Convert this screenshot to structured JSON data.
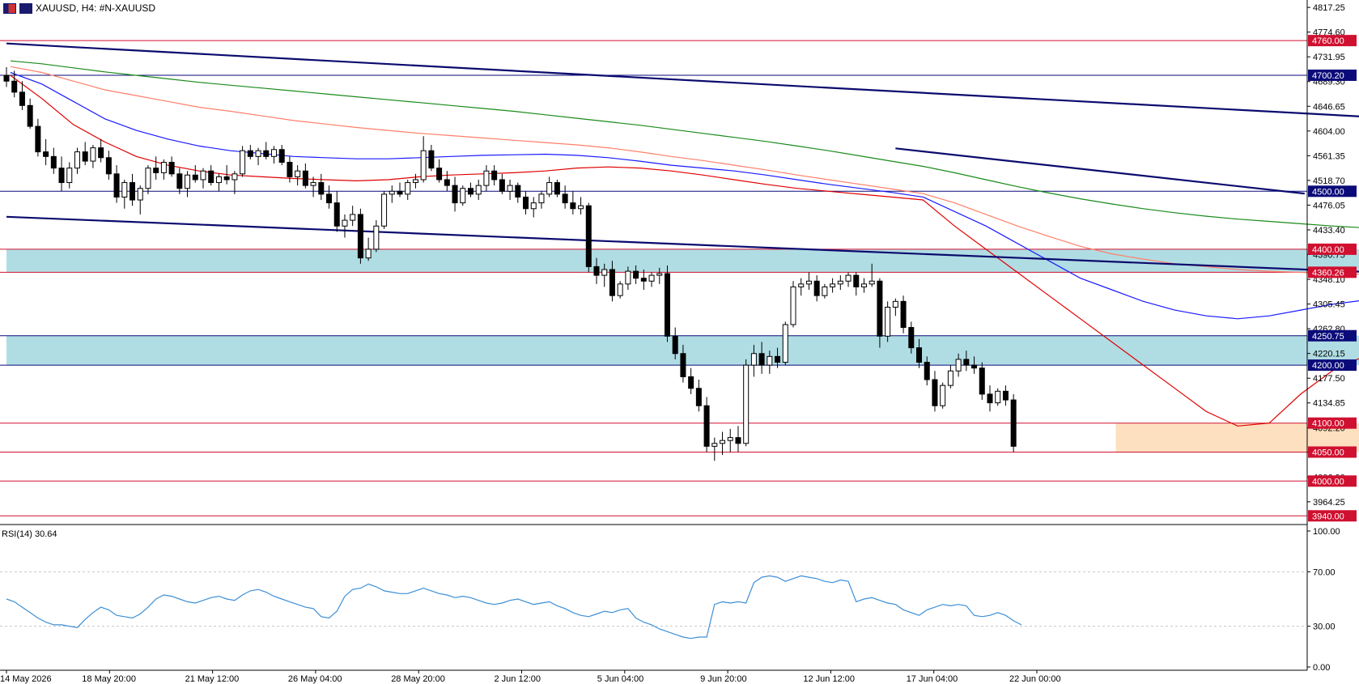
{
  "header": {
    "symbol": "XAUUSD",
    "timeframe": "H4:",
    "description": "#N-XAUUSD"
  },
  "indicator": {
    "label": "RSI(14) 30.64",
    "axis_ticks": [
      "100.00",
      "70.00",
      "30.00",
      "0.00"
    ]
  },
  "colors": {
    "background": "#ffffff",
    "bull_candle": "#ffffff",
    "bear_candle": "#000000",
    "ema_fast": "#e00000",
    "ema_mid": "#1a1aff",
    "ema_slow": "#ff7f6a",
    "ema_long": "#1a8a1a",
    "rsi": "#3d8fd6",
    "zone_cyan": "#b0dde3",
    "zone_orange": "#fde0c0",
    "trendline": "#0a0a6e",
    "red_level": "#d01030",
    "blue_level": "#0a0a7a"
  },
  "chart_data": {
    "type": "candlestick",
    "symbol": "XAUUSD",
    "timeframe": "H4",
    "ylim": [
      3925,
      4830
    ],
    "price_axis_ticks": [
      "4817.25",
      "4774.60",
      "4731.95",
      "4689.30",
      "4646.65",
      "4604.00",
      "4561.35",
      "4518.70",
      "4476.05",
      "4433.40",
      "4390.75",
      "4348.10",
      "4305.45",
      "4262.80",
      "4220.15",
      "4177.50",
      "4134.85",
      "4092.20",
      "4049.55",
      "4006.90",
      "3964.25"
    ],
    "time_axis_labels": [
      "14 May 2026",
      "18 May 20:00",
      "21 May 12:00",
      "26 May 04:00",
      "28 May 20:00",
      "2 Jun 12:00",
      "5 Jun 04:00",
      "9 Jun 20:00",
      "12 Jun 12:00",
      "17 Jun 04:00",
      "22 Jun 00:00"
    ],
    "horizontal_levels": [
      {
        "value": 4760.0,
        "label": "4760.00",
        "style": "red"
      },
      {
        "value": 4700.2,
        "label": "4700.20",
        "style": "blue"
      },
      {
        "value": 4500.0,
        "label": "4500.00",
        "style": "blue"
      },
      {
        "value": 4400.0,
        "label": "4400.00",
        "style": "red"
      },
      {
        "value": 4360.26,
        "label": "4360.26",
        "style": "red"
      },
      {
        "value": 4250.75,
        "label": "4250.75",
        "style": "blue"
      },
      {
        "value": 4200.0,
        "label": "4200.00",
        "style": "blue"
      },
      {
        "value": 4100.0,
        "label": "4100.00",
        "style": "red"
      },
      {
        "value": 4050.0,
        "label": "4050.00",
        "style": "red"
      },
      {
        "value": 4000.0,
        "label": "4000.00",
        "style": "red"
      },
      {
        "value": 3940.0,
        "label": "3940.00",
        "style": "red"
      }
    ],
    "zones": [
      {
        "from_bar": 0,
        "to_bar": 304,
        "low": 4360.26,
        "high": 4400.0,
        "color": "cyan"
      },
      {
        "from_bar": 0,
        "to_bar": 300,
        "low": 4200.0,
        "high": 4250.75,
        "color": "cyan"
      },
      {
        "from_bar": 141,
        "to_bar": 300,
        "low": 4050.0,
        "high": 4100.0,
        "color": "orange"
      }
    ],
    "trendlines": [
      {
        "x1": 0,
        "y1": 4755,
        "x2": 201,
        "y2": 4608
      },
      {
        "x1": 0,
        "y1": 4456,
        "x2": 254,
        "y2": 4316
      },
      {
        "x1": 113,
        "y1": 4574,
        "x2": 165,
        "y2": 4496
      }
    ],
    "ohlc": [
      [
        4700,
        4714,
        4680,
        4690
      ],
      [
        4690,
        4708,
        4662,
        4671
      ],
      [
        4671,
        4690,
        4640,
        4648
      ],
      [
        4648,
        4660,
        4608,
        4612
      ],
      [
        4612,
        4625,
        4560,
        4568
      ],
      [
        4568,
        4590,
        4545,
        4560
      ],
      [
        4560,
        4575,
        4530,
        4540
      ],
      [
        4540,
        4560,
        4500,
        4515
      ],
      [
        4515,
        4550,
        4505,
        4540
      ],
      [
        4540,
        4575,
        4530,
        4568
      ],
      [
        4568,
        4585,
        4545,
        4552
      ],
      [
        4552,
        4580,
        4540,
        4575
      ],
      [
        4575,
        4590,
        4550,
        4558
      ],
      [
        4558,
        4570,
        4520,
        4530
      ],
      [
        4530,
        4545,
        4480,
        4490
      ],
      [
        4490,
        4520,
        4470,
        4515
      ],
      [
        4515,
        4530,
        4475,
        4485
      ],
      [
        4485,
        4510,
        4460,
        4505
      ],
      [
        4505,
        4545,
        4495,
        4540
      ],
      [
        4540,
        4560,
        4520,
        4532
      ],
      [
        4532,
        4555,
        4520,
        4550
      ],
      [
        4550,
        4560,
        4525,
        4530
      ],
      [
        4530,
        4540,
        4495,
        4505
      ],
      [
        4505,
        4535,
        4490,
        4528
      ],
      [
        4528,
        4545,
        4515,
        4520
      ],
      [
        4520,
        4540,
        4505,
        4535
      ],
      [
        4535,
        4545,
        4510,
        4515
      ],
      [
        4515,
        4530,
        4500,
        4525
      ],
      [
        4525,
        4545,
        4512,
        4520
      ],
      [
        4520,
        4535,
        4495,
        4530
      ],
      [
        4530,
        4578,
        4525,
        4570
      ],
      [
        4570,
        4580,
        4555,
        4560
      ],
      [
        4560,
        4575,
        4545,
        4570
      ],
      [
        4570,
        4585,
        4555,
        4560
      ],
      [
        4560,
        4578,
        4548,
        4572
      ],
      [
        4572,
        4580,
        4545,
        4550
      ],
      [
        4550,
        4560,
        4515,
        4525
      ],
      [
        4525,
        4545,
        4510,
        4535
      ],
      [
        4535,
        4548,
        4505,
        4510
      ],
      [
        4510,
        4525,
        4490,
        4515
      ],
      [
        4515,
        4530,
        4485,
        4495
      ],
      [
        4495,
        4510,
        4470,
        4480
      ],
      [
        4480,
        4500,
        4430,
        4440
      ],
      [
        4440,
        4460,
        4420,
        4450
      ],
      [
        4450,
        4475,
        4440,
        4460
      ],
      [
        4460,
        4470,
        4375,
        4385
      ],
      [
        4385,
        4420,
        4380,
        4400
      ],
      [
        4400,
        4450,
        4395,
        4440
      ],
      [
        4440,
        4500,
        4435,
        4495
      ],
      [
        4495,
        4510,
        4480,
        4500
      ],
      [
        4500,
        4515,
        4490,
        4495
      ],
      [
        4495,
        4520,
        4485,
        4515
      ],
      [
        4515,
        4530,
        4505,
        4520
      ],
      [
        4520,
        4595,
        4515,
        4570
      ],
      [
        4570,
        4580,
        4535,
        4540
      ],
      [
        4540,
        4555,
        4515,
        4520
      ],
      [
        4520,
        4535,
        4500,
        4510
      ],
      [
        4510,
        4525,
        4465,
        4480
      ],
      [
        4480,
        4510,
        4475,
        4505
      ],
      [
        4505,
        4515,
        4490,
        4495
      ],
      [
        4495,
        4520,
        4485,
        4510
      ],
      [
        4510,
        4545,
        4500,
        4535
      ],
      [
        4535,
        4545,
        4510,
        4520
      ],
      [
        4520,
        4530,
        4495,
        4500
      ],
      [
        4500,
        4520,
        4485,
        4510
      ],
      [
        4510,
        4515,
        4480,
        4490
      ],
      [
        4490,
        4500,
        4460,
        4470
      ],
      [
        4470,
        4490,
        4455,
        4480
      ],
      [
        4480,
        4500,
        4470,
        4495
      ],
      [
        4495,
        4525,
        4490,
        4515
      ],
      [
        4515,
        4520,
        4490,
        4495
      ],
      [
        4495,
        4510,
        4470,
        4480
      ],
      [
        4480,
        4500,
        4460,
        4470
      ],
      [
        4470,
        4490,
        4460,
        4475
      ],
      [
        4475,
        4480,
        4360,
        4370
      ],
      [
        4370,
        4385,
        4340,
        4355
      ],
      [
        4355,
        4375,
        4335,
        4365
      ],
      [
        4365,
        4380,
        4310,
        4320
      ],
      [
        4320,
        4345,
        4315,
        4340
      ],
      [
        4340,
        4370,
        4330,
        4362
      ],
      [
        4362,
        4372,
        4340,
        4350
      ],
      [
        4350,
        4365,
        4330,
        4345
      ],
      [
        4345,
        4360,
        4335,
        4355
      ],
      [
        4355,
        4368,
        4340,
        4358
      ],
      [
        4358,
        4372,
        4240,
        4250
      ],
      [
        4250,
        4265,
        4210,
        4220
      ],
      [
        4220,
        4235,
        4170,
        4180
      ],
      [
        4180,
        4195,
        4150,
        4160
      ],
      [
        4160,
        4175,
        4120,
        4130
      ],
      [
        4130,
        4145,
        4050,
        4060
      ],
      [
        4060,
        4075,
        4035,
        4065
      ],
      [
        4065,
        4085,
        4045,
        4070
      ],
      [
        4070,
        4090,
        4050,
        4075
      ],
      [
        4075,
        4095,
        4050,
        4065
      ],
      [
        4065,
        4210,
        4060,
        4200
      ],
      [
        4200,
        4235,
        4180,
        4220
      ],
      [
        4220,
        4240,
        4185,
        4200
      ],
      [
        4200,
        4225,
        4185,
        4215
      ],
      [
        4215,
        4230,
        4195,
        4205
      ],
      [
        4205,
        4275,
        4200,
        4270
      ],
      [
        4270,
        4345,
        4265,
        4335
      ],
      [
        4335,
        4350,
        4320,
        4340
      ],
      [
        4340,
        4360,
        4330,
        4345
      ],
      [
        4345,
        4355,
        4310,
        4320
      ],
      [
        4320,
        4340,
        4315,
        4335
      ],
      [
        4335,
        4350,
        4325,
        4340
      ],
      [
        4340,
        4355,
        4330,
        4345
      ],
      [
        4345,
        4360,
        4335,
        4355
      ],
      [
        4355,
        4360,
        4320,
        4335
      ],
      [
        4335,
        4350,
        4325,
        4340
      ],
      [
        4340,
        4375,
        4335,
        4345
      ],
      [
        4345,
        4350,
        4230,
        4250
      ],
      [
        4250,
        4310,
        4240,
        4300
      ],
      [
        4300,
        4315,
        4285,
        4310
      ],
      [
        4310,
        4320,
        4255,
        4265
      ],
      [
        4265,
        4275,
        4220,
        4230
      ],
      [
        4230,
        4245,
        4195,
        4205
      ],
      [
        4205,
        4215,
        4165,
        4175
      ],
      [
        4175,
        4190,
        4120,
        4130
      ],
      [
        4130,
        4170,
        4125,
        4165
      ],
      [
        4165,
        4200,
        4160,
        4190
      ],
      [
        4190,
        4220,
        4180,
        4210
      ],
      [
        4210,
        4225,
        4190,
        4200
      ],
      [
        4200,
        4215,
        4185,
        4195
      ],
      [
        4195,
        4205,
        4140,
        4150
      ],
      [
        4150,
        4165,
        4120,
        4135
      ],
      [
        4135,
        4160,
        4130,
        4155
      ],
      [
        4155,
        4165,
        4130,
        4140
      ],
      [
        4140,
        4150,
        4050,
        4060
      ]
    ],
    "moving_averages": [
      {
        "name": "EMA fast",
        "color": "#e00000",
        "values": [
          4700,
          4660,
          4615,
          4585,
          4560,
          4545,
          4535,
          4528,
          4525,
          4522,
          4520,
          4518,
          4520,
          4525,
          4528,
          4530,
          4532,
          4535,
          4540,
          4542,
          4540,
          4535,
          4528,
          4520,
          4512,
          4505,
          4500,
          4495,
          4490,
          4485,
          4440,
          4400,
          4360,
          4320,
          4280,
          4240,
          4200,
          4160,
          4120,
          4095,
          4100,
          4150,
          4190,
          4215,
          4240,
          4265,
          4285,
          4300,
          4310,
          4315,
          4312,
          4300,
          4285,
          4262,
          4240,
          4220,
          4200,
          4185,
          4170,
          4150
        ]
      },
      {
        "name": "EMA mid",
        "color": "#1a1aff",
        "values": [
          4705,
          4685,
          4655,
          4625,
          4605,
          4590,
          4578,
          4570,
          4565,
          4560,
          4558,
          4556,
          4556,
          4558,
          4560,
          4562,
          4563,
          4564,
          4562,
          4558,
          4552,
          4545,
          4540,
          4535,
          4528,
          4520,
          4512,
          4505,
          4498,
          4490,
          4465,
          4440,
          4410,
          4380,
          4350,
          4330,
          4310,
          4295,
          4285,
          4280,
          4285,
          4295,
          4305,
          4312,
          4318,
          4322,
          4326,
          4330,
          4332,
          4325,
          4312,
          4300,
          4290,
          4280,
          4270,
          4260,
          4255,
          4250,
          4240,
          4220
        ]
      },
      {
        "name": "EMA slow",
        "color": "#ff7f6a",
        "values": [
          4715,
          4705,
          4690,
          4675,
          4665,
          4655,
          4645,
          4638,
          4630,
          4622,
          4616,
          4610,
          4605,
          4600,
          4596,
          4592,
          4588,
          4584,
          4580,
          4575,
          4568,
          4560,
          4553,
          4545,
          4537,
          4528,
          4520,
          4512,
          4504,
          4496,
          4480,
          4460,
          4440,
          4422,
          4405,
          4392,
          4383,
          4375,
          4370,
          4365,
          4362,
          4360,
          4358,
          4357,
          4356,
          4357,
          4358,
          4359,
          4360,
          4360,
          4358,
          4352,
          4345,
          4338,
          4331,
          4323,
          4315,
          4306,
          4297,
          4290
        ]
      },
      {
        "name": "EMA long",
        "color": "#1a8a1a",
        "values": [
          4725,
          4720,
          4713,
          4706,
          4700,
          4694,
          4688,
          4683,
          4678,
          4673,
          4668,
          4663,
          4658,
          4653,
          4648,
          4643,
          4638,
          4632,
          4626,
          4620,
          4614,
          4607,
          4600,
          4593,
          4586,
          4578,
          4570,
          4561,
          4552,
          4543,
          4532,
          4520,
          4508,
          4497,
          4487,
          4478,
          4470,
          4463,
          4457,
          4452,
          4448,
          4444,
          4440,
          4437,
          4434,
          4431,
          4428,
          4424,
          4420,
          4415,
          4410,
          4405,
          4400,
          4397
        ]
      }
    ],
    "rsi": {
      "period": 14,
      "last": 30.64,
      "ylim": [
        0,
        100
      ],
      "levels": [
        70,
        30
      ],
      "values": [
        50,
        48,
        44,
        40,
        36,
        33,
        31,
        31,
        30,
        29,
        35,
        40,
        44,
        42,
        38,
        37,
        36,
        39,
        44,
        50,
        53,
        52,
        50,
        48,
        47,
        49,
        51,
        52,
        50,
        49,
        53,
        56,
        57,
        55,
        52,
        50,
        48,
        46,
        44,
        43,
        37,
        36,
        41,
        52,
        57,
        58,
        61,
        59,
        56,
        55,
        54,
        54,
        56,
        58,
        56,
        54,
        53,
        51,
        52,
        51,
        49,
        47,
        46,
        47,
        49,
        50,
        48,
        46,
        47,
        48,
        45,
        43,
        40,
        38,
        37,
        39,
        41,
        40,
        42,
        43,
        36,
        33,
        31,
        28,
        26,
        24,
        22,
        21,
        22,
        22,
        46,
        48,
        47,
        48,
        47,
        62,
        66,
        67,
        66,
        63,
        65,
        67,
        66,
        65,
        63,
        62,
        64,
        63,
        48,
        50,
        51,
        49,
        47,
        46,
        42,
        40,
        38,
        42,
        44,
        46,
        45,
        46,
        45,
        38,
        37,
        38,
        40,
        38,
        34,
        31
      ]
    }
  }
}
